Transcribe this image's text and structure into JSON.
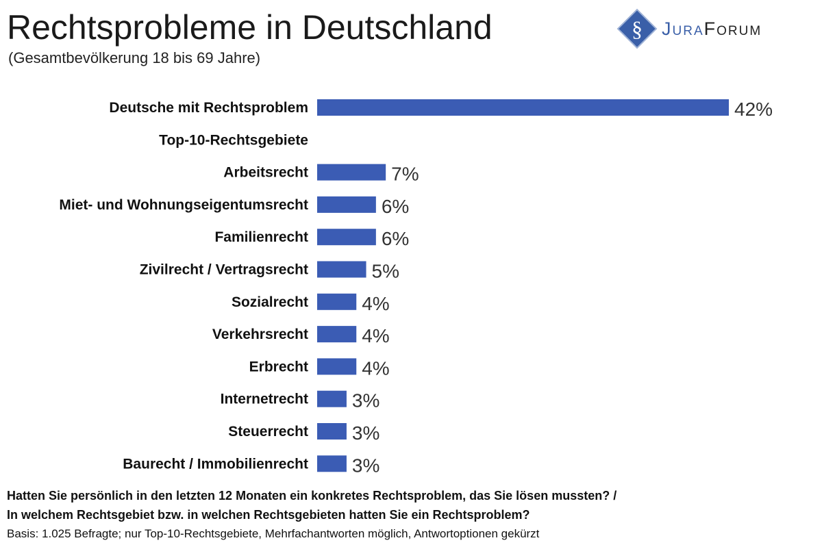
{
  "brand": {
    "name_part1": "Jura",
    "name_part2": "Forum",
    "logo_colors": {
      "diamond": "#3a5fa8",
      "text_blue": "#3a5fa8",
      "text_dark": "#222222"
    }
  },
  "chart_data": {
    "type": "bar",
    "orientation": "horizontal",
    "title": "Rechtsprobleme in Deutschland",
    "subtitle": "(Gesamtbevölkerung 18 bis 69 Jahre)",
    "categories": [
      "Deutsche mit Rechtsproblem",
      "Top-10-Rechtsgebiete",
      "Arbeitsrecht",
      "Miet- und Wohnungseigentumsrecht",
      "Familienrecht",
      "Zivilrecht / Vertragsrecht",
      "Sozialrecht",
      "Verkehrsrecht",
      "Erbrecht",
      "Internetrecht",
      "Steuerrecht",
      "Baurecht / Immobilienrecht"
    ],
    "values": [
      42,
      null,
      7,
      6,
      6,
      5,
      4,
      4,
      4,
      3,
      3,
      3
    ],
    "value_labels": [
      "42%",
      "",
      "7%",
      "6%",
      "6%",
      "5%",
      "4%",
      "4%",
      "4%",
      "3%",
      "3%",
      "3%"
    ],
    "unit": "%",
    "xlim": [
      0,
      42
    ],
    "grid": false,
    "bar_color": "#3b5cb4"
  },
  "footer": {
    "question_1": "Hatten Sie persönlich in den letzten 12 Monaten ein konkretes Rechtsproblem, das Sie lösen mussten? /",
    "question_2": "In welchem Rechtsgebiet bzw. in welchen Rechtsgebieten hatten Sie ein Rechtsproblem?",
    "basis": "Basis: 1.025 Befragte;  nur Top-10-Rechtsgebiete,  Mehrfachantworten  möglich, Antwortoptionen  gekürzt"
  }
}
